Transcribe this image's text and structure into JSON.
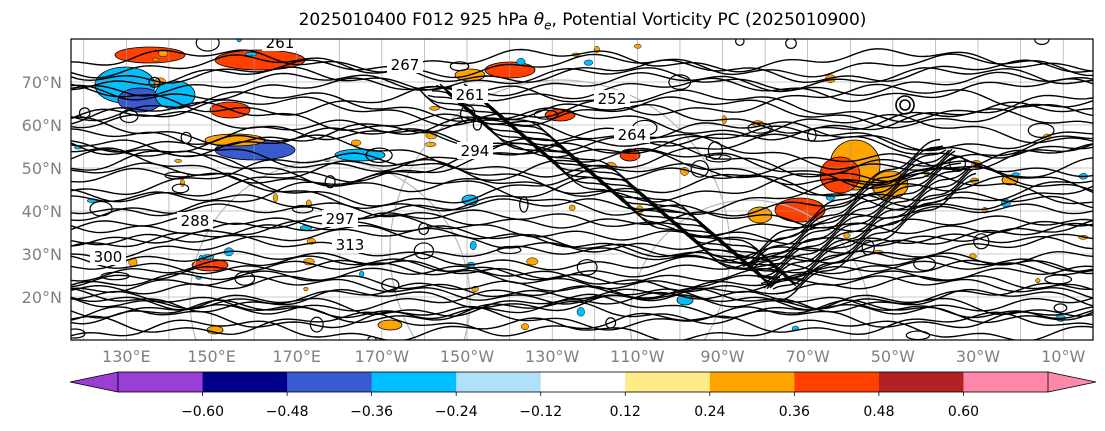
{
  "chart_data": {
    "type": "map-contour",
    "title_main": "2025010400 F012 925 hPa ",
    "title_theta": "θ",
    "title_sub": "e",
    "title_rest": ", Potential Vorticity PC (2025010900)",
    "lat_labels": [
      "70°N",
      "60°N",
      "50°N",
      "40°N",
      "30°N",
      "20°N"
    ],
    "lat_values": [
      70,
      60,
      50,
      40,
      30,
      20
    ],
    "lon_labels": [
      "130°E",
      "150°E",
      "170°E",
      "170°W",
      "150°W",
      "130°W",
      "110°W",
      "90°W",
      "70°W",
      "50°W",
      "30°W",
      "10°W"
    ],
    "lon_range": [
      117,
      357
    ],
    "lat_range": [
      10,
      80
    ],
    "contour_labels": [
      "261",
      "267",
      "261",
      "294",
      "252",
      "264",
      "297",
      "313",
      "288",
      "300"
    ],
    "colorbar": {
      "ticks": [
        "−0.60",
        "−0.48",
        "−0.36",
        "−0.24",
        "−0.12",
        "0.12",
        "0.24",
        "0.36",
        "0.48",
        "0.60"
      ],
      "bounds": [
        -0.72,
        -0.6,
        -0.48,
        -0.36,
        -0.24,
        -0.12,
        0.12,
        0.24,
        0.36,
        0.48,
        0.6,
        0.72
      ],
      "colors": [
        "#9a3fd6",
        "#000088",
        "#3a5bd0",
        "#00bfff",
        "#b0e0fa",
        "#ffffff",
        "#ffeb87",
        "#ffa500",
        "#ff4000",
        "#b22222",
        "#ff88aa"
      ],
      "extend_colors": [
        "#9a3fd6",
        "#ff88aa"
      ]
    }
  }
}
